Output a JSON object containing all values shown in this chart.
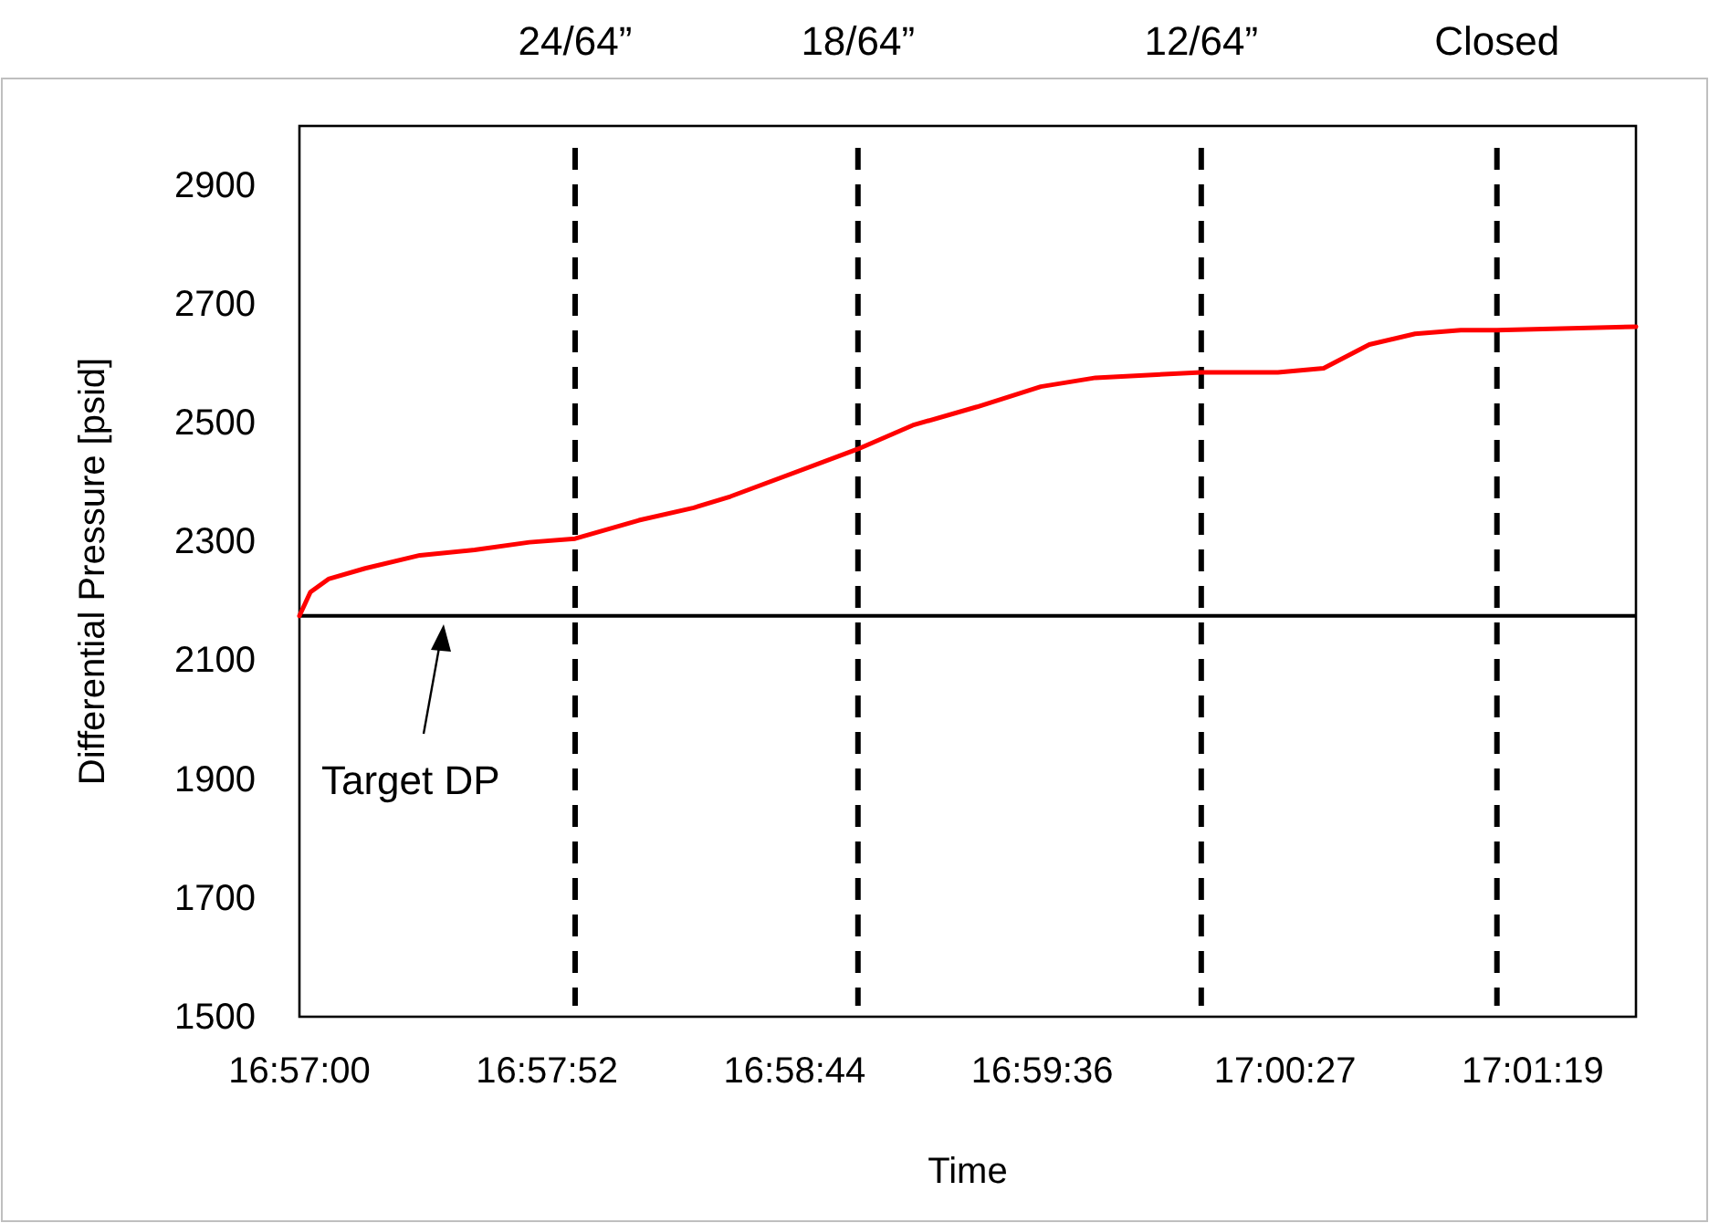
{
  "chart_data": {
    "type": "line",
    "xlabel": "Time",
    "ylabel": "Differential Pressure [psid]",
    "x": [
      16.95,
      16.950639,
      16.951694,
      16.953833,
      16.957028,
      16.960222,
      16.963417,
      16.966083,
      16.969806,
      16.973,
      16.975139,
      16.982583,
      16.985778,
      16.989528,
      16.99325,
      16.996444,
      17.002611,
      17.007083,
      17.00975,
      17.012417,
      17.015083,
      17.01775,
      17.019861,
      17.027972
    ],
    "series": [
      {
        "color": "#ff0000",
        "values": [
          2175,
          2215,
          2237,
          2255,
          2277,
          2286,
          2299,
          2305,
          2336,
          2357,
          2376,
          2456,
          2496,
          2527,
          2561,
          2576,
          2585,
          2585,
          2592,
          2632,
          2650,
          2656,
          2656,
          2662
        ]
      }
    ],
    "xlim": [
      16.95,
      17.027972
    ],
    "ylim": [
      1500,
      3000
    ],
    "xticks": [
      {
        "value": 16.95,
        "label": "16:57:00"
      },
      {
        "value": 16.964444,
        "label": "16:57:52"
      },
      {
        "value": 16.978889,
        "label": "16:58:44"
      },
      {
        "value": 16.993333,
        "label": "16:59:36"
      },
      {
        "value": 17.0075,
        "label": "17:00:27"
      },
      {
        "value": 17.021944,
        "label": "17:01:19"
      }
    ],
    "yticks": [
      1500,
      1700,
      1900,
      2100,
      2300,
      2500,
      2700,
      2900
    ],
    "ref_lines": [
      {
        "axis": "y",
        "value": 2175,
        "label": null,
        "color": "#000000",
        "line_style": "solid"
      },
      {
        "axis": "x",
        "value": 16.966083,
        "label": "24/64”",
        "color": "#000000",
        "line_style": "dashed"
      },
      {
        "axis": "x",
        "value": 16.982583,
        "label": "18/64”",
        "color": "#000000",
        "line_style": "dashed"
      },
      {
        "axis": "x",
        "value": 17.002611,
        "label": "12/64”",
        "color": "#000000",
        "line_style": "dashed"
      },
      {
        "axis": "x",
        "value": 17.019861,
        "label": "Closed",
        "color": "#000000",
        "line_style": "dashed"
      }
    ],
    "annotations": [
      "Target DP"
    ],
    "grid": false,
    "marker": "none",
    "line_style": "solid"
  }
}
